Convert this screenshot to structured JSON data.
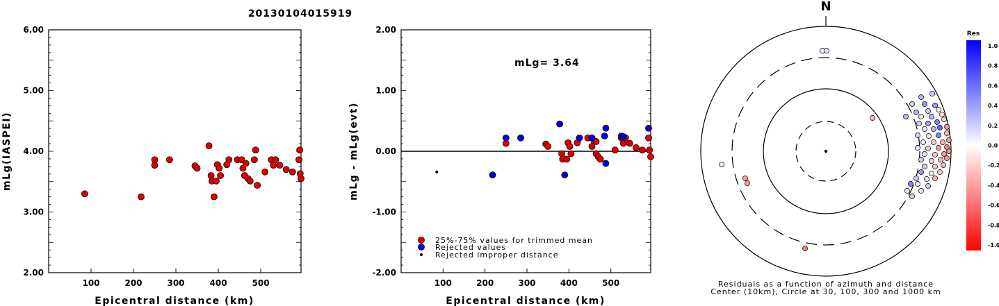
{
  "title": "20130104015919",
  "chart_data": [
    {
      "type": "scatter",
      "name": "mlg-vs-distance",
      "xlabel": "Epicentral distance (km)",
      "ylabel": "mLg(IASPEI)",
      "xlim": [
        0,
        595
      ],
      "ylim": [
        2.0,
        6.0
      ],
      "x_ticks": [
        "100",
        "200",
        "300",
        "400",
        "500"
      ],
      "y_ticks": [
        "2.00",
        "3.00",
        "4.00",
        "5.00",
        "6.00"
      ],
      "series": [
        {
          "color": "#e00000",
          "points": [
            [
              85,
              3.3
            ],
            [
              218,
              3.25
            ],
            [
              250,
              3.86
            ],
            [
              250,
              3.77
            ],
            [
              285,
              3.86
            ],
            [
              345,
              3.76
            ],
            [
              350,
              3.72
            ],
            [
              378,
              4.09
            ],
            [
              383,
              3.6
            ],
            [
              385,
              3.51
            ],
            [
              390,
              3.25
            ],
            [
              395,
              3.51
            ],
            [
              398,
              3.78
            ],
            [
              402,
              3.72
            ],
            [
              405,
              3.6
            ],
            [
              420,
              3.78
            ],
            [
              425,
              3.86
            ],
            [
              445,
              3.86
            ],
            [
              455,
              3.86
            ],
            [
              458,
              3.72
            ],
            [
              462,
              3.6
            ],
            [
              465,
              3.8
            ],
            [
              470,
              3.55
            ],
            [
              475,
              3.51
            ],
            [
              485,
              3.86
            ],
            [
              488,
              4.02
            ],
            [
              492,
              3.44
            ],
            [
              510,
              3.66
            ],
            [
              525,
              3.86
            ],
            [
              530,
              3.77
            ],
            [
              535,
              3.86
            ],
            [
              545,
              3.77
            ],
            [
              560,
              3.7
            ],
            [
              575,
              3.66
            ],
            [
              590,
              3.86
            ],
            [
              592,
              4.02
            ],
            [
              593,
              3.63
            ],
            [
              595,
              3.55
            ]
          ]
        }
      ]
    },
    {
      "type": "scatter",
      "name": "residual-vs-distance",
      "xlabel": "Epicentral distance (km)",
      "ylabel": "mLg - mLg(evt)",
      "annotation": "mLg= 3.64",
      "xlim": [
        0,
        595
      ],
      "ylim": [
        -2.0,
        2.0
      ],
      "x_ticks": [
        "100",
        "200",
        "300",
        "400",
        "500"
      ],
      "y_ticks": [
        "-2.00",
        "-1.00",
        "0.00",
        "1.00",
        "2.00"
      ],
      "legend": [
        "25%-75% values for trimmed mean",
        "Rejected values",
        "Rejected improper distance"
      ],
      "series": [
        {
          "color": "#e00000",
          "points": [
            [
              250,
              0.13
            ],
            [
              345,
              0.12
            ],
            [
              350,
              0.08
            ],
            [
              383,
              -0.04
            ],
            [
              385,
              -0.13
            ],
            [
              395,
              -0.13
            ],
            [
              398,
              0.14
            ],
            [
              402,
              0.08
            ],
            [
              405,
              -0.04
            ],
            [
              420,
              0.14
            ],
            [
              445,
              0.22
            ],
            [
              455,
              0.08
            ],
            [
              460,
              0.17
            ],
            [
              465,
              0.16
            ],
            [
              465,
              -0.04
            ],
            [
              470,
              -0.09
            ],
            [
              475,
              -0.13
            ],
            [
              510,
              0.02
            ],
            [
              525,
              0.22
            ],
            [
              530,
              0.13
            ],
            [
              535,
              0.22
            ],
            [
              545,
              0.13
            ],
            [
              560,
              0.06
            ],
            [
              575,
              0.02
            ],
            [
              590,
              0.22
            ],
            [
              592,
              0.02
            ],
            [
              595,
              -0.09
            ]
          ]
        },
        {
          "color": "#0000e0",
          "points": [
            [
              218,
              -0.39
            ],
            [
              250,
              0.22
            ],
            [
              285,
              0.22
            ],
            [
              378,
              0.45
            ],
            [
              390,
              -0.39
            ],
            [
              425,
              0.22
            ],
            [
              455,
              0.22
            ],
            [
              485,
              0.25
            ],
            [
              488,
              0.38
            ],
            [
              488,
              -0.2
            ],
            [
              525,
              0.25
            ],
            [
              530,
              0.24
            ],
            [
              590,
              0.38
            ]
          ]
        },
        {
          "color": "#000000",
          "points": [
            [
              85,
              -0.34
            ]
          ]
        }
      ]
    },
    {
      "type": "polar-scatter",
      "name": "azimuth-residuals",
      "north_label": "N",
      "caption1": "Residuals as a function of azimuth and distance",
      "caption2": "Center (10km), Circle at 30, 100, 300 and 1000 km",
      "colorbar_title": "Res",
      "colorbar_ticks": [
        "1.0",
        "0.8",
        "0.6",
        "0.4",
        "0.2",
        "0.0",
        "-0.2",
        "-0.4",
        "-0.6",
        "-0.8",
        "-1.0"
      ],
      "points": [
        [
          1183,
          73,
          0.1
        ],
        [
          1189,
          73,
          0.1
        ],
        [
          1255,
          170,
          -0.3
        ],
        [
          1038,
          237,
          -0.1
        ],
        [
          1072,
          257,
          -0.4
        ],
        [
          1075,
          264,
          -0.4
        ],
        [
          1158,
          358,
          -0.5
        ],
        [
          1341,
          135,
          0.2
        ],
        [
          1325,
          140,
          0.3
        ],
        [
          1312,
          150,
          0.2
        ],
        [
          1330,
          150,
          0.4
        ],
        [
          1345,
          152,
          0.4
        ],
        [
          1318,
          162,
          0.3
        ],
        [
          1335,
          160,
          0.2
        ],
        [
          1350,
          158,
          -0.1
        ],
        [
          1303,
          168,
          0.3
        ],
        [
          1325,
          168,
          0.1
        ],
        [
          1340,
          168,
          0.3
        ],
        [
          1355,
          165,
          -0.1
        ],
        [
          1322,
          178,
          0.2
        ],
        [
          1335,
          178,
          0.4
        ],
        [
          1348,
          176,
          0.5
        ],
        [
          1358,
          172,
          -0.2
        ],
        [
          1330,
          186,
          0.1
        ],
        [
          1343,
          186,
          0.3
        ],
        [
          1352,
          184,
          0.6
        ],
        [
          1362,
          183,
          -0.4
        ],
        [
          1320,
          195,
          0.2
        ],
        [
          1336,
          196,
          -0.1
        ],
        [
          1350,
          195,
          0.5
        ],
        [
          1362,
          192,
          -0.3
        ],
        [
          1328,
          205,
          0.1
        ],
        [
          1343,
          205,
          -0.2
        ],
        [
          1356,
          205,
          -0.3
        ],
        [
          1365,
          202,
          -0.4
        ],
        [
          1320,
          213,
          0.1
        ],
        [
          1335,
          214,
          -0.2
        ],
        [
          1350,
          213,
          -0.4
        ],
        [
          1362,
          212,
          -0.5
        ],
        [
          1330,
          222,
          0.1
        ],
        [
          1345,
          223,
          -0.2
        ],
        [
          1358,
          222,
          -0.4
        ],
        [
          1365,
          218,
          -0.5
        ],
        [
          1325,
          230,
          0.2
        ],
        [
          1340,
          232,
          -0.2
        ],
        [
          1353,
          230,
          -0.3
        ],
        [
          1362,
          228,
          -0.4
        ],
        [
          1330,
          240,
          0.2
        ],
        [
          1345,
          240,
          -0.2
        ],
        [
          1357,
          238,
          -0.3
        ],
        [
          1325,
          248,
          0.4
        ],
        [
          1340,
          250,
          -0.1
        ],
        [
          1352,
          248,
          -0.2
        ],
        [
          1318,
          257,
          0.2
        ],
        [
          1333,
          258,
          0.1
        ],
        [
          1345,
          257,
          -0.3
        ],
        [
          1320,
          265,
          0.1
        ],
        [
          1310,
          265,
          0.5
        ],
        [
          1335,
          268,
          0.2
        ],
        [
          1305,
          275,
          0.1
        ],
        [
          1325,
          275,
          0.1
        ],
        [
          1312,
          283,
          0.2
        ]
      ]
    }
  ]
}
